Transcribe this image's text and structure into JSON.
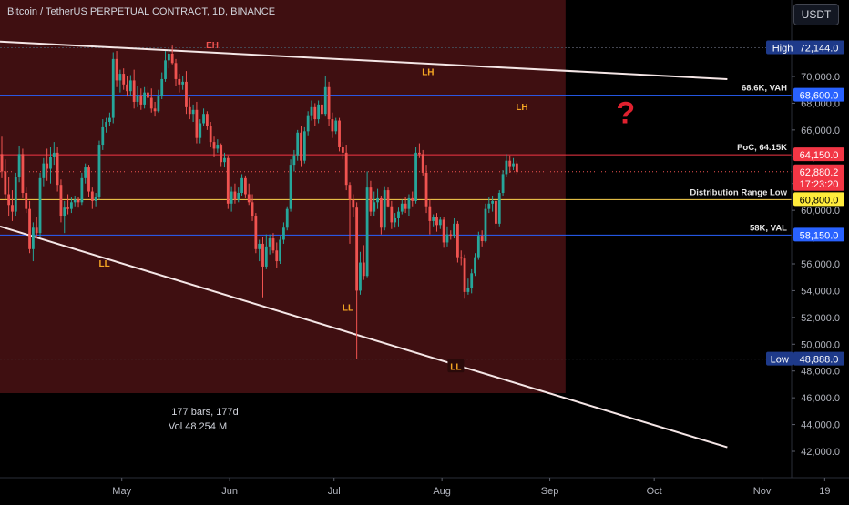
{
  "header": {
    "symbol_title": "Bitcoin / TetherUS PERPETUAL CONTRACT, 1D, BINANCE",
    "currency_button": "USDT"
  },
  "colors": {
    "background": "#000000",
    "shaded_range": "#4a1214",
    "up_candle": "#26a69a",
    "down_candle": "#ef5350",
    "label_orange": "#f5a623",
    "label_red": "#ef5350",
    "vah_val_line": "#2962ff",
    "poc_line": "#f23645",
    "distribution_low_line": "#ffd54f",
    "trendline": "#f5e6e6"
  },
  "chart_data": {
    "type": "candlestick",
    "title": "Bitcoin / TetherUS PERPETUAL CONTRACT, 1D, BINANCE",
    "y_axis_ticks": [
      "72,000.0",
      "70,000.0",
      "68,000.0",
      "66,000.0",
      "64,000.0",
      "62,000.0",
      "60,000.0",
      "58,000.0",
      "56,000.0",
      "54,000.0",
      "52,000.0",
      "50,000.0",
      "48,000.0",
      "46,000.0",
      "44,000.0",
      "42,000.0"
    ],
    "x_axis_ticks": [
      "May",
      "Jun",
      "Jul",
      "Aug",
      "Sep",
      "Oct",
      "Nov",
      "19"
    ],
    "ylim": [
      41000,
      74000
    ],
    "price_levels": [
      {
        "name": "High",
        "value": 72144.0,
        "badge": "72,144.0"
      },
      {
        "name": "68.6K, VAH",
        "value": 68600.0,
        "badge": "68,600.0"
      },
      {
        "name": "PoC, 64.15K",
        "value": 64150.0,
        "badge": "64,150.0"
      },
      {
        "name": "Distribution Range Low",
        "value": 60800.0,
        "badge": "60,800.0"
      },
      {
        "name": "58K, VAL",
        "value": 58150.0,
        "badge": "58,150.0"
      },
      {
        "name": "Low",
        "value": 48888.0,
        "badge": "48,888.0"
      }
    ],
    "current_price": {
      "value": 62880.2,
      "badge": "62,880.2",
      "countdown": "17:23:20"
    },
    "structure_labels": [
      {
        "text": "EH",
        "date": "2024-05-27",
        "price": 72300
      },
      {
        "text": "LH",
        "date": "2024-07-28",
        "price": 70300
      },
      {
        "text": "LH",
        "date": "2024-08-24",
        "price": 67700
      },
      {
        "text": "LL",
        "date": "2024-04-26",
        "price": 56000
      },
      {
        "text": "LL",
        "date": "2024-07-05",
        "price": 52700
      },
      {
        "text": "LL",
        "date": "2024-08-05",
        "price": 48300
      }
    ],
    "question_mark": "?",
    "shaded_range": {
      "start": "2024-03-27",
      "end": "2024-09-05"
    },
    "trendlines": [
      {
        "from_date": "2024-03-27",
        "from_price": 72600,
        "to_date": "2024-10-22",
        "to_price": 69800
      },
      {
        "from_date": "2024-03-27",
        "from_price": 58800,
        "to_date": "2024-10-22",
        "to_price": 42300
      }
    ],
    "range_stats": [
      "177 bars, 177d",
      "Vol 48.254 M"
    ],
    "candles": [
      [
        64200,
        65500,
        62400,
        62900
      ],
      [
        62900,
        63800,
        60800,
        61200
      ],
      [
        61200,
        62500,
        59600,
        60400
      ],
      [
        60400,
        61500,
        59200,
        59900
      ],
      [
        59900,
        62800,
        59600,
        62500
      ],
      [
        62500,
        64800,
        62100,
        64200
      ],
      [
        64200,
        64600,
        60900,
        61300
      ],
      [
        61300,
        61700,
        59800,
        60100
      ],
      [
        60100,
        60700,
        56800,
        57100
      ],
      [
        57100,
        59100,
        56200,
        58700
      ],
      [
        58700,
        59500,
        57900,
        58300
      ],
      [
        58300,
        62800,
        58000,
        62400
      ],
      [
        62400,
        63900,
        61800,
        63500
      ],
      [
        63500,
        64600,
        62200,
        63100
      ],
      [
        63100,
        64700,
        62000,
        64000
      ],
      [
        64000,
        65100,
        63400,
        64300
      ],
      [
        64300,
        64700,
        61400,
        61900
      ],
      [
        61900,
        62300,
        59100,
        59600
      ],
      [
        59600,
        60700,
        58300,
        60200
      ],
      [
        60200,
        61200,
        59700,
        60100
      ],
      [
        60100,
        61000,
        59800,
        60600
      ],
      [
        60600,
        61100,
        60300,
        60800
      ],
      [
        60800,
        61000,
        60200,
        60600
      ],
      [
        60600,
        62800,
        60400,
        62400
      ],
      [
        62400,
        63500,
        62000,
        63200
      ],
      [
        63200,
        63400,
        61000,
        61400
      ],
      [
        61400,
        61700,
        60100,
        60700
      ],
      [
        60700,
        61300,
        60300,
        61000
      ],
      [
        61000,
        65200,
        60800,
        64900
      ],
      [
        64900,
        66800,
        64500,
        66200
      ],
      [
        66200,
        66900,
        65800,
        66600
      ],
      [
        66600,
        67300,
        66300,
        66900
      ],
      [
        66900,
        71800,
        66500,
        71300
      ],
      [
        71300,
        71900,
        69200,
        69700
      ],
      [
        69700,
        70500,
        68800,
        70200
      ],
      [
        70200,
        70600,
        69000,
        69400
      ],
      [
        69400,
        70000,
        68500,
        68900
      ],
      [
        68900,
        70100,
        68500,
        69700
      ],
      [
        69700,
        70500,
        67600,
        68100
      ],
      [
        68100,
        69300,
        67700,
        68600
      ],
      [
        68600,
        69100,
        67500,
        67900
      ],
      [
        67900,
        69200,
        67600,
        68800
      ],
      [
        68800,
        69300,
        67900,
        68400
      ],
      [
        68400,
        69100,
        67300,
        67600
      ],
      [
        67600,
        68100,
        67000,
        67400
      ],
      [
        67400,
        69000,
        67300,
        68500
      ],
      [
        68500,
        70300,
        68300,
        69800
      ],
      [
        69800,
        71900,
        69600,
        71200
      ],
      [
        71200,
        72100,
        70600,
        71700
      ],
      [
        71700,
        72300,
        70900,
        71000
      ],
      [
        71000,
        71300,
        69300,
        69800
      ],
      [
        69800,
        70200,
        68800,
        69400
      ],
      [
        69400,
        70000,
        69000,
        69600
      ],
      [
        69600,
        70400,
        67200,
        67700
      ],
      [
        67700,
        68400,
        66800,
        67200
      ],
      [
        67200,
        67900,
        66600,
        67500
      ],
      [
        67500,
        68100,
        65000,
        65400
      ],
      [
        65400,
        66800,
        65000,
        66500
      ],
      [
        66500,
        67600,
        66300,
        67200
      ],
      [
        67200,
        67400,
        66000,
        66300
      ],
      [
        66300,
        66600,
        64700,
        65100
      ],
      [
        65100,
        65500,
        64000,
        64600
      ],
      [
        64600,
        65300,
        64300,
        64900
      ],
      [
        64900,
        65000,
        63300,
        63600
      ],
      [
        63600,
        64300,
        63200,
        63900
      ],
      [
        63900,
        64100,
        60100,
        60500
      ],
      [
        60500,
        61800,
        59900,
        61400
      ],
      [
        61400,
        62000,
        60500,
        60800
      ],
      [
        60800,
        61700,
        60600,
        61300
      ],
      [
        61300,
        62700,
        61100,
        62400
      ],
      [
        62400,
        62600,
        60900,
        61200
      ],
      [
        61200,
        62000,
        60400,
        60600
      ],
      [
        60600,
        61200,
        59200,
        59600
      ],
      [
        59600,
        59800,
        56800,
        57100
      ],
      [
        57100,
        57800,
        56200,
        57500
      ],
      [
        57500,
        58000,
        53500,
        55800
      ],
      [
        55800,
        58200,
        55600,
        57300
      ],
      [
        57300,
        58200,
        56700,
        57900
      ],
      [
        57900,
        58300,
        56800,
        57000
      ],
      [
        57000,
        57600,
        55700,
        56200
      ],
      [
        56200,
        58100,
        56000,
        57800
      ],
      [
        57800,
        59100,
        57500,
        58700
      ],
      [
        58700,
        60300,
        58500,
        60100
      ],
      [
        60100,
        63800,
        59900,
        63400
      ],
      [
        63400,
        64500,
        62900,
        64100
      ],
      [
        64100,
        66000,
        63700,
        65800
      ],
      [
        65800,
        66300,
        63300,
        63700
      ],
      [
        63700,
        66200,
        63500,
        65900
      ],
      [
        65900,
        67400,
        65600,
        67100
      ],
      [
        67100,
        68200,
        66700,
        67700
      ],
      [
        67700,
        68000,
        66300,
        66800
      ],
      [
        66800,
        68200,
        66500,
        67900
      ],
      [
        67900,
        68600,
        66900,
        67200
      ],
      [
        67200,
        70000,
        67000,
        69200
      ],
      [
        69200,
        69600,
        66300,
        66800
      ],
      [
        66800,
        67300,
        65400,
        65900
      ],
      [
        65900,
        66900,
        65700,
        66700
      ],
      [
        66700,
        66900,
        64400,
        64700
      ],
      [
        64700,
        65100,
        63800,
        64300
      ],
      [
        64300,
        64900,
        61500,
        61900
      ],
      [
        61900,
        62100,
        57500,
        60800
      ],
      [
        60800,
        61200,
        59500,
        60200
      ],
      [
        60200,
        60600,
        48900,
        54000
      ],
      [
        54000,
        56900,
        53700,
        56100
      ],
      [
        56100,
        57400,
        54800,
        55100
      ],
      [
        55100,
        62900,
        55000,
        61700
      ],
      [
        61700,
        62200,
        59600,
        59900
      ],
      [
        59900,
        61400,
        59600,
        60600
      ],
      [
        60600,
        61600,
        60100,
        60900
      ],
      [
        60900,
        61100,
        58200,
        58700
      ],
      [
        58700,
        61800,
        58500,
        61500
      ],
      [
        61500,
        61700,
        60200,
        60300
      ],
      [
        60300,
        60700,
        58600,
        59100
      ],
      [
        59100,
        59800,
        58700,
        59400
      ],
      [
        59400,
        60200,
        58800,
        59900
      ],
      [
        59900,
        60800,
        59700,
        60500
      ],
      [
        60500,
        61000,
        59800,
        60100
      ],
      [
        60100,
        61200,
        59600,
        60900
      ],
      [
        60900,
        61400,
        60300,
        60700
      ],
      [
        60700,
        64700,
        60500,
        64300
      ],
      [
        64300,
        65000,
        63900,
        64200
      ],
      [
        64200,
        64500,
        62600,
        62800
      ],
      [
        62800,
        63400,
        59800,
        60300
      ],
      [
        60300,
        60800,
        58200,
        59200
      ],
      [
        59200,
        59700,
        58800,
        59500
      ],
      [
        59500,
        59800,
        58400,
        58900
      ],
      [
        58900,
        59500,
        58600,
        59300
      ],
      [
        59300,
        59500,
        57200,
        57600
      ],
      [
        57600,
        58800,
        57300,
        58200
      ],
      [
        58200,
        58500,
        57800,
        58100
      ],
      [
        58100,
        59400,
        57900,
        59000
      ],
      [
        59000,
        59200,
        56100,
        56500
      ],
      [
        56500,
        57000,
        55900,
        56400
      ],
      [
        56400,
        56700,
        53400,
        53900
      ],
      [
        53900,
        54900,
        53700,
        54200
      ],
      [
        54200,
        55600,
        53800,
        55300
      ],
      [
        55300,
        56800,
        55100,
        56500
      ],
      [
        56500,
        58400,
        56300,
        58100
      ],
      [
        58100,
        58500,
        57300,
        57700
      ],
      [
        57700,
        60500,
        57600,
        60100
      ],
      [
        60100,
        61000,
        59800,
        60500
      ],
      [
        60500,
        61100,
        59900,
        60700
      ],
      [
        60700,
        60900,
        58600,
        59000
      ],
      [
        59000,
        61500,
        58800,
        61300
      ],
      [
        61300,
        63000,
        61100,
        62700
      ],
      [
        62700,
        64200,
        62500,
        63700
      ],
      [
        63700,
        64100,
        62800,
        63300
      ],
      [
        63300,
        63900,
        63000,
        63500
      ],
      [
        63500,
        63700,
        62700,
        62880
      ]
    ]
  },
  "range_start": "2024-03-27"
}
